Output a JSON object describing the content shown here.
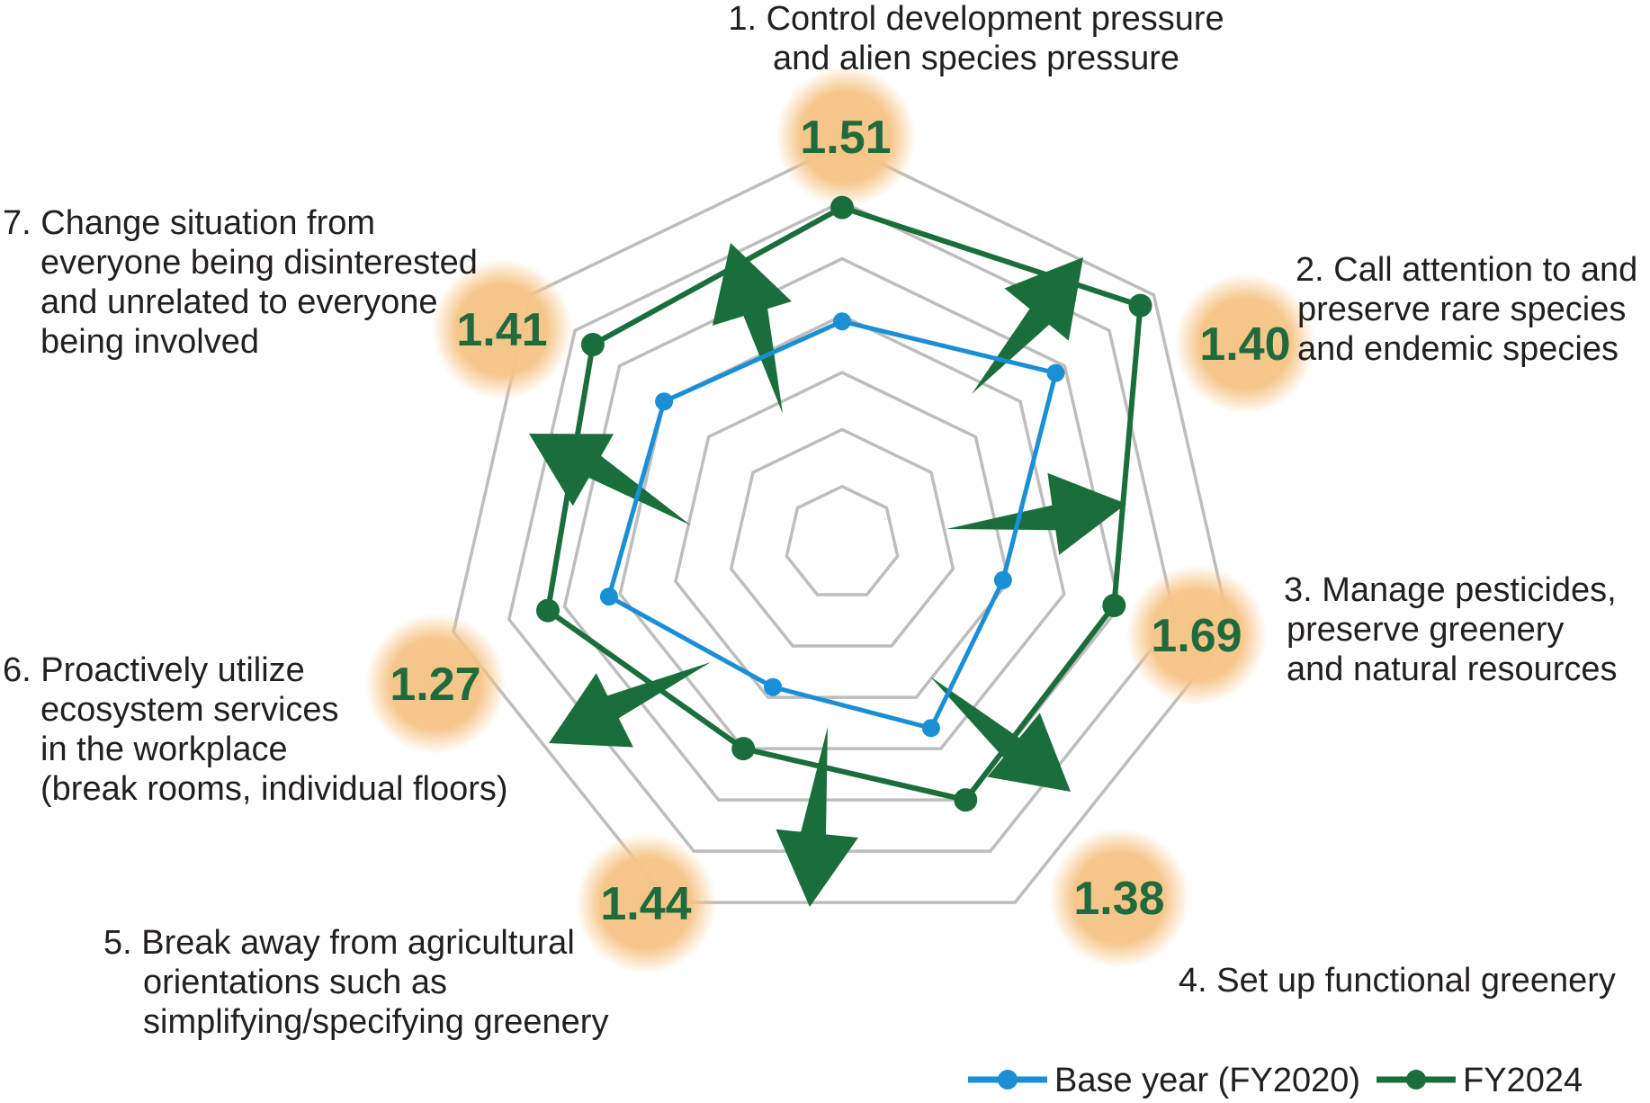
{
  "chart_data": {
    "type": "radar",
    "axes": [
      {
        "label_lines": [
          "1. Control development pressure",
          "and alien species pressure"
        ],
        "ratio": "1.51"
      },
      {
        "label_lines": [
          "2. Call attention to and",
          "preserve rare species",
          "and endemic species"
        ],
        "ratio": "1.40"
      },
      {
        "label_lines": [
          "3. Manage pesticides,",
          "preserve greenery",
          "and natural resources"
        ],
        "ratio": "1.69"
      },
      {
        "label_lines": [
          "4. Set up functional greenery"
        ],
        "ratio": "1.38"
      },
      {
        "label_lines": [
          "5. Break away from agricultural",
          "orientations such as",
          "simplifying/specifying greenery"
        ],
        "ratio": "1.44"
      },
      {
        "label_lines": [
          "6. Proactively utilize",
          "ecosystem services",
          "in the workplace",
          "(break rooms, individual floors)"
        ],
        "ratio": "1.27"
      },
      {
        "label_lines": [
          "7. Change situation from",
          "everyone being disinterested",
          "and unrelated to everyone",
          "being involved"
        ],
        "ratio": "1.41"
      }
    ],
    "rings": 7,
    "scale_max": 7,
    "series": [
      {
        "name": "Base year (FY2020)",
        "color": "#1a8fd6",
        "values": [
          3.9,
          4.8,
          2.9,
          3.6,
          2.8,
          4.2,
          4.0
        ]
      },
      {
        "name": "FY2024",
        "color": "#1a6e3c",
        "values": [
          5.9,
          6.7,
          4.9,
          5.0,
          4.0,
          5.3,
          5.6
        ]
      }
    ],
    "grid_color": "#bdbdbd",
    "highlight_color": "#f6c486",
    "arrow_color": "#1a6e3c",
    "legend_position": "bottom-right"
  }
}
